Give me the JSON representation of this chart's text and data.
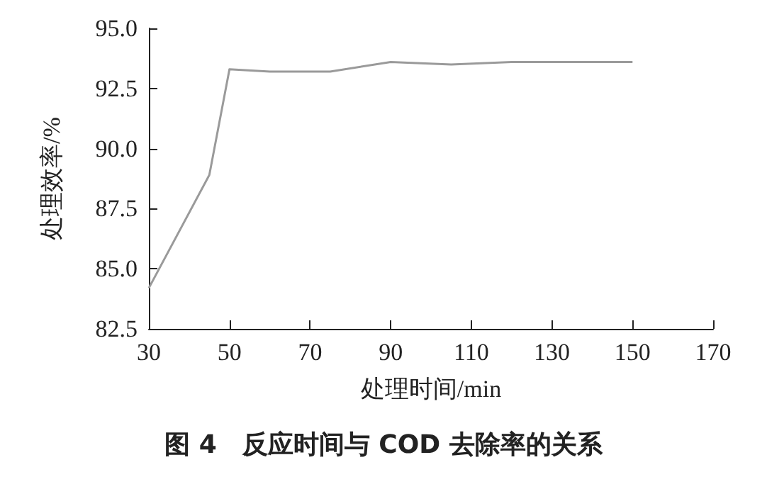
{
  "chart_data": {
    "type": "line",
    "xlabel": "处理时间/min",
    "ylabel": "处理效率/%",
    "annotations": [
      "图 4　反应时间与 COD 去除率的关系"
    ],
    "series": [
      {
        "color": "#9a9a9a",
        "x": [
          30,
          45,
          50,
          60,
          75,
          90,
          105,
          120,
          150
        ],
        "values": [
          84.2,
          88.9,
          93.3,
          93.2,
          93.2,
          93.6,
          93.5,
          93.6,
          93.6
        ]
      }
    ],
    "xlim": [
      30,
      170
    ],
    "xticks": [
      30,
      50,
      70,
      90,
      110,
      130,
      150,
      170
    ],
    "ylim": [
      82.5,
      95
    ],
    "yticks": [
      82.5,
      {
        "value": 85,
        "label": "85.0"
      },
      87.5,
      {
        "value": 90,
        "label": "90.0"
      },
      92.5,
      {
        "value": 95,
        "label": "95.0"
      }
    ],
    "grid": false,
    "marker": "none",
    "line_style": "solid"
  }
}
